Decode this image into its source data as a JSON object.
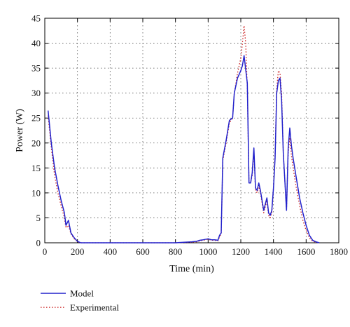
{
  "chart_data": {
    "type": "line",
    "title": "",
    "xlabel": "Time (min)",
    "ylabel": "Power (W)",
    "xlim": [
      0,
      1800
    ],
    "ylim": [
      0,
      45
    ],
    "x_ticks": [
      0,
      200,
      400,
      600,
      800,
      1000,
      1200,
      1400,
      1600,
      1800
    ],
    "y_ticks": [
      0,
      5,
      10,
      15,
      20,
      25,
      30,
      35,
      40,
      45
    ],
    "grid": true,
    "legend_position": "bottom-left",
    "series": [
      {
        "name": "Model",
        "color": "#2222cc",
        "style": "solid",
        "x": [
          20,
          40,
          60,
          80,
          100,
          120,
          130,
          145,
          160,
          180,
          200,
          220,
          300,
          400,
          500,
          600,
          700,
          800,
          900,
          930,
          950,
          970,
          1000,
          1020,
          1040,
          1060,
          1070,
          1080,
          1090,
          1110,
          1130,
          1140,
          1150,
          1160,
          1180,
          1200,
          1210,
          1220,
          1240,
          1250,
          1260,
          1270,
          1280,
          1290,
          1300,
          1310,
          1320,
          1340,
          1360,
          1370,
          1380,
          1390,
          1400,
          1410,
          1420,
          1430,
          1440,
          1450,
          1460,
          1480,
          1490,
          1500,
          1510,
          1520,
          1540,
          1560,
          1580,
          1600,
          1620,
          1640,
          1660,
          1680
        ],
        "y": [
          26.5,
          20,
          15,
          11.5,
          8.5,
          6,
          3.5,
          4.5,
          2,
          1,
          0.3,
          0,
          0,
          0,
          0,
          0,
          0,
          0,
          0.2,
          0.3,
          0.5,
          0.6,
          0.8,
          0.6,
          0.6,
          0.5,
          1.5,
          2,
          17,
          20.5,
          24.5,
          24.8,
          25,
          30,
          33,
          34.5,
          35.5,
          37.5,
          32,
          12,
          12,
          14,
          19,
          11,
          10.5,
          12,
          10.5,
          6.5,
          9,
          6,
          5.5,
          6.5,
          11,
          17,
          30,
          32.5,
          33,
          28.5,
          18,
          6.5,
          19,
          23,
          19.5,
          17,
          13,
          9,
          6,
          3.5,
          1.5,
          0.5,
          0.2,
          0
        ]
      },
      {
        "name": "Experimental",
        "color": "#cc2222",
        "style": "dotted",
        "x": [
          20,
          40,
          60,
          80,
          100,
          120,
          130,
          145,
          160,
          180,
          200,
          220,
          300,
          400,
          500,
          600,
          700,
          800,
          900,
          930,
          950,
          970,
          1000,
          1020,
          1040,
          1060,
          1070,
          1080,
          1090,
          1110,
          1130,
          1140,
          1150,
          1160,
          1180,
          1200,
          1210,
          1220,
          1230,
          1240,
          1250,
          1260,
          1270,
          1280,
          1290,
          1300,
          1310,
          1320,
          1340,
          1360,
          1370,
          1380,
          1390,
          1400,
          1410,
          1420,
          1430,
          1440,
          1450,
          1460,
          1480,
          1490,
          1500,
          1510,
          1520,
          1540,
          1560,
          1580,
          1600,
          1620,
          1640,
          1660,
          1680
        ],
        "y": [
          25.5,
          19,
          13.5,
          10,
          7.5,
          5,
          3,
          3.5,
          1.8,
          0.8,
          0.2,
          0,
          0,
          0,
          0,
          0,
          0,
          0,
          0.1,
          0.2,
          0.4,
          0.5,
          0.7,
          0.5,
          0.5,
          0.4,
          1.2,
          1.8,
          16.5,
          20,
          24,
          24.5,
          25,
          30,
          34,
          37,
          40,
          43.5,
          40,
          31,
          12,
          12,
          13.5,
          18.5,
          10.5,
          10,
          11.5,
          10,
          6,
          8.5,
          5.5,
          5,
          6,
          11,
          18,
          31,
          34.5,
          34,
          30,
          18,
          6.5,
          18,
          21,
          17.5,
          15,
          11,
          7.5,
          4.5,
          2.5,
          1,
          0.3,
          0.1,
          0
        ]
      }
    ]
  }
}
